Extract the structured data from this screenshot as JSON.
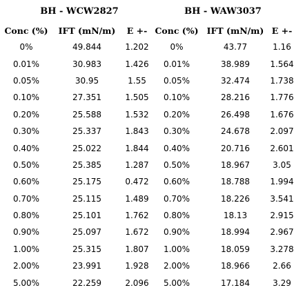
{
  "groups": [
    {
      "title": "BH - WCW2827"
    },
    {
      "title": "BH - WAW3037"
    }
  ],
  "headers": [
    "Conc (%)",
    "IFT (mN/m)",
    "E +-",
    "Conc (%)",
    "IFT (mN/m)",
    "E +-"
  ],
  "rows": [
    [
      "0%",
      "49.844",
      "1.202",
      "0%",
      "43.77",
      "1.16"
    ],
    [
      "0.01%",
      "30.983",
      "1.426",
      "0.01%",
      "38.989",
      "1.564"
    ],
    [
      "0.05%",
      "30.95",
      "1.55",
      "0.05%",
      "32.474",
      "1.738"
    ],
    [
      "0.10%",
      "27.351",
      "1.505",
      "0.10%",
      "28.216",
      "1.776"
    ],
    [
      "0.20%",
      "25.588",
      "1.532",
      "0.20%",
      "26.498",
      "1.676"
    ],
    [
      "0.30%",
      "25.337",
      "1.843",
      "0.30%",
      "24.678",
      "2.097"
    ],
    [
      "0.40%",
      "25.022",
      "1.844",
      "0.40%",
      "20.716",
      "2.601"
    ],
    [
      "0.50%",
      "25.385",
      "1.287",
      "0.50%",
      "18.967",
      "3.05"
    ],
    [
      "0.60%",
      "25.175",
      "0.472",
      "0.60%",
      "18.788",
      "1.994"
    ],
    [
      "0.70%",
      "25.115",
      "1.489",
      "0.70%",
      "18.226",
      "3.541"
    ],
    [
      "0.80%",
      "25.101",
      "1.762",
      "0.80%",
      "18.13",
      "2.915"
    ],
    [
      "0.90%",
      "25.097",
      "1.672",
      "0.90%",
      "18.994",
      "2.967"
    ],
    [
      "1.00%",
      "25.315",
      "1.807",
      "1.00%",
      "18.059",
      "3.278"
    ],
    [
      "2.00%",
      "23.991",
      "1.928",
      "2.00%",
      "18.966",
      "2.66"
    ],
    [
      "5.00%",
      "22.259",
      "2.096",
      "5.00%",
      "17.184",
      "3.29"
    ]
  ]
}
